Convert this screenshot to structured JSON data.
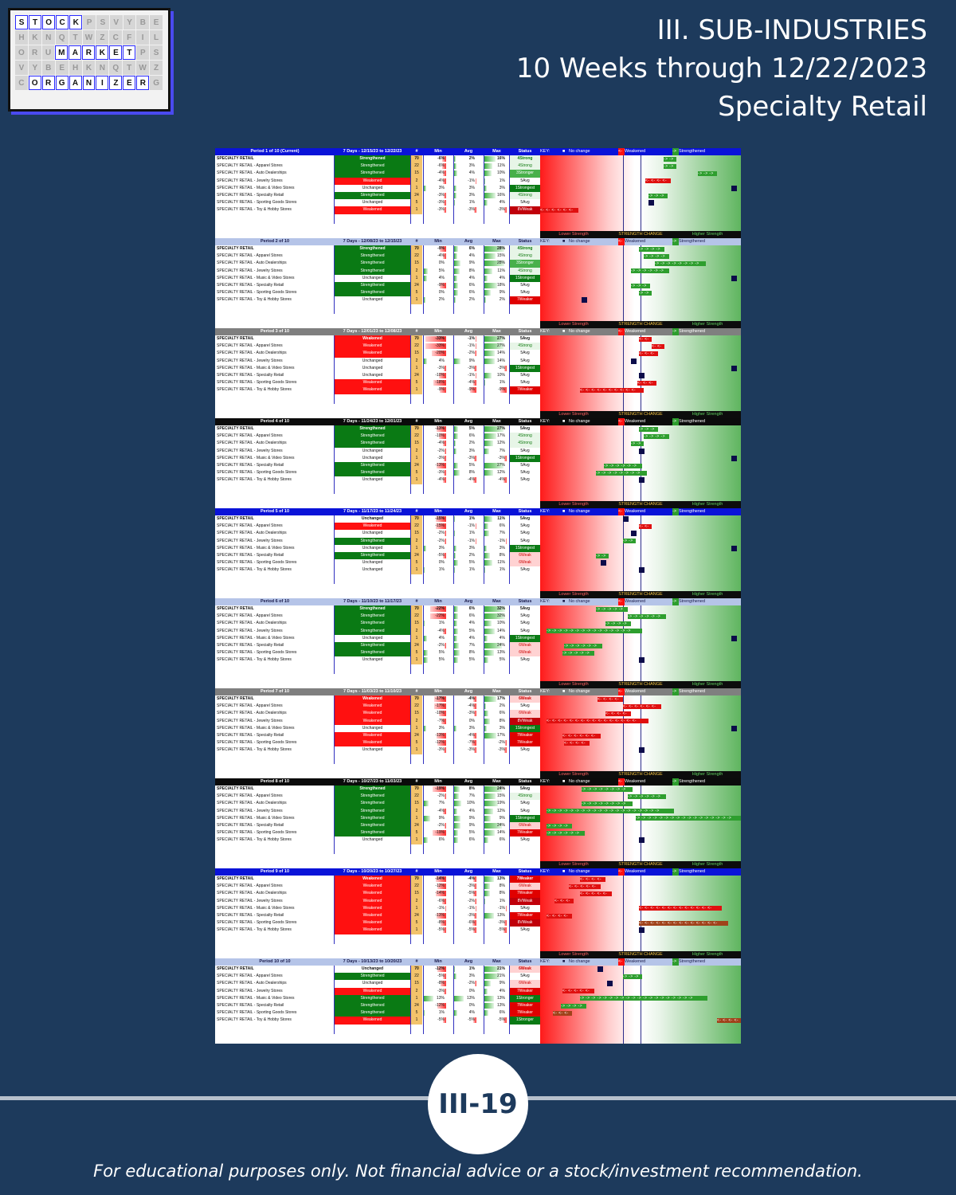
{
  "logo": {
    "rows": [
      [
        "S",
        "T",
        "O",
        "C",
        "K",
        "",
        "",
        "",
        "",
        "",
        ""
      ],
      [
        "",
        "",
        "",
        "",
        "",
        "",
        "",
        "",
        "",
        "",
        ""
      ],
      [
        "",
        "",
        "",
        "M",
        "A",
        "R",
        "K",
        "E",
        "T",
        "",
        ""
      ],
      [
        "",
        "",
        "",
        "",
        "",
        "",
        "",
        "",
        "",
        "",
        ""
      ],
      [
        "",
        "O",
        "R",
        "G",
        "A",
        "N",
        "I",
        "Z",
        "E",
        "R",
        ""
      ]
    ]
  },
  "title": {
    "line1": "III. SUB-INDUSTRIES",
    "line2": "10 Weeks through 12/22/2023",
    "line3": "Specialty Retail"
  },
  "key": {
    "label": "KEY:",
    "no_change": "No change",
    "weakened": "Weakened",
    "strengthened": "Strengthened",
    "lower": "Lower Strength",
    "change": "STRENGTH CHANGE",
    "higher": "Higher Strength"
  },
  "col_headers": {
    "num": "#",
    "min": "Min",
    "avg": "Avg",
    "max": "Max",
    "status": "Status"
  },
  "periods": [
    {
      "label": "Period 1 of 10 (Current)",
      "range": "7 Days - 12/15/23 to 12/22/23",
      "hdr": "blue",
      "rows": [
        [
          "SPECIALTY RETAIL",
          "Strengthened",
          "70",
          "-6%",
          "2%",
          "16%",
          "4Strong"
        ],
        [
          "SPECIALTY RETAIL - Apparel Stores",
          "Strengthened",
          "22",
          "-6%",
          "3%",
          "11%",
          "4Strong"
        ],
        [
          "SPECIALTY RETAIL - Auto Dealerships",
          "Strengthened",
          "15",
          "-4%",
          "4%",
          "10%",
          "3Stronger"
        ],
        [
          "SPECIALTY RETAIL - Jewelry Stores",
          "Weakened",
          "2",
          "-4%",
          "-1%",
          "1%",
          "5Avg"
        ],
        [
          "SPECIALTY RETAIL - Music & Video Stores",
          "Unchanged",
          "1",
          "3%",
          "3%",
          "3%",
          "1Strongest"
        ],
        [
          "SPECIALTY RETAIL - Specialty Retail",
          "Strengthened",
          "24",
          "-3%",
          "3%",
          "16%",
          "4Strong"
        ],
        [
          "SPECIALTY RETAIL - Sporting Goods Stores",
          "Unchanged",
          "5",
          "-3%",
          "1%",
          "4%",
          "5Avg"
        ],
        [
          "SPECIALTY RETAIL - Toy & Hobby Stores",
          "Weakened",
          "1",
          "-3%",
          "-3%",
          "-3%",
          "8VWeak"
        ]
      ]
    },
    {
      "label": "Period 2 of 10",
      "range": "7 Days - 12/08/23 to 12/15/23",
      "hdr": "lav",
      "rows": [
        [
          "SPECIALTY RETAIL",
          "Strengthened",
          "70",
          "-9%",
          "6%",
          "28%",
          "4Strong"
        ],
        [
          "SPECIALTY RETAIL - Apparel Stores",
          "Strengthened",
          "22",
          "-4%",
          "4%",
          "15%",
          "4Strong"
        ],
        [
          "SPECIALTY RETAIL - Auto Dealerships",
          "Strengthened",
          "15",
          "0%",
          "9%",
          "28%",
          "3Stronger"
        ],
        [
          "SPECIALTY RETAIL - Jewelry Stores",
          "Strengthened",
          "2",
          "5%",
          "8%",
          "11%",
          "4Strong"
        ],
        [
          "SPECIALTY RETAIL - Music & Video Stores",
          "Unchanged",
          "1",
          "4%",
          "4%",
          "4%",
          "1Strongest"
        ],
        [
          "SPECIALTY RETAIL - Specialty Retail",
          "Strengthened",
          "24",
          "-9%",
          "6%",
          "18%",
          "5Avg"
        ],
        [
          "SPECIALTY RETAIL - Sporting Goods Stores",
          "Strengthened",
          "5",
          "0%",
          "6%",
          "9%",
          "5Avg"
        ],
        [
          "SPECIALTY RETAIL - Toy & Hobby Stores",
          "Unchanged",
          "1",
          "2%",
          "2%",
          "2%",
          "7Weaker"
        ]
      ]
    },
    {
      "label": "Period 3 of 10",
      "range": "7 Days - 12/01/23 to 12/08/23",
      "hdr": "gray",
      "rows": [
        [
          "SPECIALTY RETAIL",
          "Weakened",
          "70",
          "-33%",
          "-1%",
          "27%",
          "5Avg"
        ],
        [
          "SPECIALTY RETAIL - Apparel Stores",
          "Weakened",
          "22",
          "-33%",
          "-1%",
          "27%",
          "4Strong"
        ],
        [
          "SPECIALTY RETAIL - Auto Dealerships",
          "Weakened",
          "15",
          "-20%",
          "-2%",
          "14%",
          "5Avg"
        ],
        [
          "SPECIALTY RETAIL - Jewelry Stores",
          "Unchanged",
          "2",
          "4%",
          "9%",
          "14%",
          "5Avg"
        ],
        [
          "SPECIALTY RETAIL - Music & Video Stores",
          "Unchanged",
          "1",
          "-3%",
          "-3%",
          "-3%",
          "1Strongest"
        ],
        [
          "SPECIALTY RETAIL - Specialty Retail",
          "Unchanged",
          "24",
          "-10%",
          "-1%",
          "10%",
          "5Avg"
        ],
        [
          "SPECIALTY RETAIL - Sporting Goods Stores",
          "Weakened",
          "5",
          "-18%",
          "-4%",
          "1%",
          "5Avg"
        ],
        [
          "SPECIALTY RETAIL - Toy & Hobby Stores",
          "Weakened",
          "1",
          "-9%",
          "-9%",
          "-9%",
          "7Weaker"
        ]
      ]
    },
    {
      "label": "Period 4 of 10",
      "range": "7 Days - 11/24/23 to 12/01/23",
      "hdr": "black",
      "rows": [
        [
          "SPECIALTY RETAIL",
          "Strengthened",
          "70",
          "-13%",
          "5%",
          "27%",
          "5Avg"
        ],
        [
          "SPECIALTY RETAIL - Apparel Stores",
          "Strengthened",
          "22",
          "-10%",
          "6%",
          "17%",
          "4Strong"
        ],
        [
          "SPECIALTY RETAIL - Auto Dealerships",
          "Strengthened",
          "15",
          "-4%",
          "2%",
          "12%",
          "4Strong"
        ],
        [
          "SPECIALTY RETAIL - Jewelry Stores",
          "Unchanged",
          "2",
          "-2%",
          "3%",
          "7%",
          "5Avg"
        ],
        [
          "SPECIALTY RETAIL - Music & Video Stores",
          "Unchanged",
          "1",
          "-3%",
          "-3%",
          "-3%",
          "1Strongest"
        ],
        [
          "SPECIALTY RETAIL - Specialty Retail",
          "Strengthened",
          "24",
          "-13%",
          "5%",
          "27%",
          "5Avg"
        ],
        [
          "SPECIALTY RETAIL - Sporting Goods Stores",
          "Strengthened",
          "5",
          "-3%",
          "8%",
          "12%",
          "5Avg"
        ],
        [
          "SPECIALTY RETAIL - Toy & Hobby Stores",
          "Unchanged",
          "1",
          "-4%",
          "-4%",
          "-4%",
          "5Avg"
        ]
      ]
    },
    {
      "label": "Period 5 of 10",
      "range": "7 Days - 11/17/23 to 11/24/23",
      "hdr": "blue",
      "rows": [
        [
          "SPECIALTY RETAIL",
          "Unchanged",
          "70",
          "-15%",
          "1%",
          "11%",
          "5Avg"
        ],
        [
          "SPECIALTY RETAIL - Apparel Stores",
          "Weakened",
          "22",
          "-15%",
          "-1%",
          "6%",
          "5Avg"
        ],
        [
          "SPECIALTY RETAIL - Auto Dealerships",
          "Unchanged",
          "15",
          "-2%",
          "1%",
          "7%",
          "5Avg"
        ],
        [
          "SPECIALTY RETAIL - Jewelry Stores",
          "Strengthened",
          "2",
          "-2%",
          "-1%",
          "-1%",
          "5Avg"
        ],
        [
          "SPECIALTY RETAIL - Music & Video Stores",
          "Unchanged",
          "1",
          "3%",
          "3%",
          "3%",
          "1Strongest"
        ],
        [
          "SPECIALTY RETAIL - Specialty Retail",
          "Strengthened",
          "24",
          "-5%",
          "2%",
          "8%",
          "6Weak"
        ],
        [
          "SPECIALTY RETAIL - Sporting Goods Stores",
          "Unchanged",
          "5",
          "0%",
          "5%",
          "11%",
          "6Weak"
        ],
        [
          "SPECIALTY RETAIL - Toy & Hobby Stores",
          "Unchanged",
          "1",
          "1%",
          "1%",
          "1%",
          "5Avg"
        ]
      ]
    },
    {
      "label": "Period 6 of 10",
      "range": "7 Days - 11/10/23 to 11/17/23",
      "hdr": "lav",
      "rows": [
        [
          "SPECIALTY RETAIL",
          "Strengthened",
          "70",
          "-22%",
          "6%",
          "32%",
          "5Avg"
        ],
        [
          "SPECIALTY RETAIL - Apparel Stores",
          "Strengthened",
          "22",
          "-22%",
          "6%",
          "32%",
          "5Avg"
        ],
        [
          "SPECIALTY RETAIL - Auto Dealerships",
          "Strengthened",
          "15",
          "1%",
          "4%",
          "10%",
          "5Avg"
        ],
        [
          "SPECIALTY RETAIL - Jewelry Stores",
          "Strengthened",
          "2",
          "-4%",
          "5%",
          "14%",
          "5Avg"
        ],
        [
          "SPECIALTY RETAIL - Music & Video Stores",
          "Unchanged",
          "1",
          "4%",
          "4%",
          "4%",
          "1Strongest"
        ],
        [
          "SPECIALTY RETAIL - Specialty Retail",
          "Strengthened",
          "24",
          "-2%",
          "7%",
          "24%",
          "6Weak"
        ],
        [
          "SPECIALTY RETAIL - Sporting Goods Stores",
          "Strengthened",
          "5",
          "5%",
          "8%",
          "13%",
          "6Weak"
        ],
        [
          "SPECIALTY RETAIL - Toy & Hobby Stores",
          "Unchanged",
          "1",
          "5%",
          "5%",
          "5%",
          "5Avg"
        ]
      ]
    },
    {
      "label": "Period 7 of 10",
      "range": "7 Days - 11/03/23 to 11/10/23",
      "hdr": "gray",
      "rows": [
        [
          "SPECIALTY RETAIL",
          "Weakened",
          "70",
          "-17%",
          "-4%",
          "17%",
          "6Weak"
        ],
        [
          "SPECIALTY RETAIL - Apparel Stores",
          "Weakened",
          "22",
          "-17%",
          "-4%",
          "2%",
          "5Avg"
        ],
        [
          "SPECIALTY RETAIL - Auto Dealerships",
          "Weakened",
          "15",
          "-10%",
          "-3%",
          "6%",
          "6Weak"
        ],
        [
          "SPECIALTY RETAIL - Jewelry Stores",
          "Weakened",
          "2",
          "-7%",
          "0%",
          "8%",
          "8VWeak"
        ],
        [
          "SPECIALTY RETAIL - Music & Video Stores",
          "Unchanged",
          "1",
          "3%",
          "3%",
          "3%",
          "1Strongest"
        ],
        [
          "SPECIALTY RETAIL - Specialty Retail",
          "Weakened",
          "24",
          "-13%",
          "-4%",
          "17%",
          "7Weaker"
        ],
        [
          "SPECIALTY RETAIL - Sporting Goods Stores",
          "Weakened",
          "5",
          "-12%",
          "-7%",
          "-2%",
          "7Weaker"
        ],
        [
          "SPECIALTY RETAIL - Toy & Hobby Stores",
          "Unchanged",
          "1",
          "-3%",
          "-3%",
          "-3%",
          "5Avg"
        ]
      ]
    },
    {
      "label": "Period 8 of 10",
      "range": "7 Days - 10/27/23 to 11/03/23",
      "hdr": "black",
      "rows": [
        [
          "SPECIALTY RETAIL",
          "Strengthened",
          "70",
          "-19%",
          "8%",
          "24%",
          "5Avg"
        ],
        [
          "SPECIALTY RETAIL - Apparel Stores",
          "Strengthened",
          "22",
          "-2%",
          "7%",
          "15%",
          "4Strong"
        ],
        [
          "SPECIALTY RETAIL - Auto Dealerships",
          "Strengthened",
          "15",
          "7%",
          "10%",
          "19%",
          "5Avg"
        ],
        [
          "SPECIALTY RETAIL - Jewelry Stores",
          "Strengthened",
          "2",
          "-4%",
          "4%",
          "12%",
          "5Avg"
        ],
        [
          "SPECIALTY RETAIL - Music & Video Stores",
          "Strengthened",
          "1",
          "9%",
          "9%",
          "9%",
          "1Strongest"
        ],
        [
          "SPECIALTY RETAIL - Specialty Retail",
          "Strengthened",
          "24",
          "-2%",
          "9%",
          "24%",
          "6Weak"
        ],
        [
          "SPECIALTY RETAIL - Sporting Goods Stores",
          "Strengthened",
          "5",
          "-19%",
          "5%",
          "14%",
          "7Weaker"
        ],
        [
          "SPECIALTY RETAIL - Toy & Hobby Stores",
          "Unchanged",
          "1",
          "6%",
          "6%",
          "6%",
          "5Avg"
        ]
      ]
    },
    {
      "label": "Period 9 of 10",
      "range": "7 Days - 10/20/23 to 10/27/23",
      "hdr": "blue",
      "rows": [
        [
          "SPECIALTY RETAIL",
          "Weakened",
          "70",
          "-14%",
          "-4%",
          "13%",
          "7Weaker"
        ],
        [
          "SPECIALTY RETAIL - Apparel Stores",
          "Weakened",
          "22",
          "-12%",
          "-3%",
          "8%",
          "6Weak"
        ],
        [
          "SPECIALTY RETAIL - Auto Dealerships",
          "Weakened",
          "15",
          "-14%",
          "-5%",
          "8%",
          "7Weaker"
        ],
        [
          "SPECIALTY RETAIL - Jewelry Stores",
          "Weakened",
          "2",
          "-6%",
          "-2%",
          "1%",
          "8VWeak"
        ],
        [
          "SPECIALTY RETAIL - Music & Video Stores",
          "Weakened",
          "1",
          "-1%",
          "-1%",
          "-1%",
          "5Avg"
        ],
        [
          "SPECIALTY RETAIL - Specialty Retail",
          "Weakened",
          "24",
          "-13%",
          "-3%",
          "13%",
          "7Weaker"
        ],
        [
          "SPECIALTY RETAIL - Sporting Goods Stores",
          "Weakened",
          "5",
          "-8%",
          "-6%",
          "-3%",
          "8VWeak"
        ],
        [
          "SPECIALTY RETAIL - Toy & Hobby Stores",
          "Weakened",
          "1",
          "-5%",
          "-5%",
          "-5%",
          "5Avg"
        ]
      ]
    },
    {
      "label": "Period 10 of 10",
      "range": "7 Days - 10/13/23 to 10/20/23",
      "hdr": "lav",
      "rows": [
        [
          "SPECIALTY RETAIL",
          "Unchanged",
          "70",
          "-12%",
          "1%",
          "21%",
          "6Weak"
        ],
        [
          "SPECIALTY RETAIL - Apparel Stores",
          "Strengthened",
          "22",
          "-5%",
          "3%",
          "21%",
          "5Avg"
        ],
        [
          "SPECIALTY RETAIL - Auto Dealerships",
          "Unchanged",
          "15",
          "-8%",
          "-2%",
          "9%",
          "6Weak"
        ],
        [
          "SPECIALTY RETAIL - Jewelry Stores",
          "Weakened",
          "2",
          "-3%",
          "0%",
          "4%",
          "7Weaker"
        ],
        [
          "SPECIALTY RETAIL - Music & Video Stores",
          "Strengthened",
          "1",
          "13%",
          "13%",
          "13%",
          "1Stronger"
        ],
        [
          "SPECIALTY RETAIL - Specialty Retail",
          "Strengthened",
          "24",
          "-12%",
          "0%",
          "13%",
          "7Weaker"
        ],
        [
          "SPECIALTY RETAIL - Sporting Goods Stores",
          "Strengthened",
          "5",
          "1%",
          "4%",
          "6%",
          "7Weaker"
        ],
        [
          "SPECIALTY RETAIL - Toy & Hobby Stores",
          "Weakened",
          "1",
          "-5%",
          "-5%",
          "-5%",
          "1Stronger"
        ]
      ]
    }
  ],
  "page_number": "III-19",
  "footer": "For educational purposes only. Not financial advice or a stock/investment recommendation.",
  "colors": {
    "background": "#1d3a5c",
    "strengthened": "#0a7a14",
    "weakened": "#ff1010",
    "accent_blue": "#0a13d8"
  }
}
